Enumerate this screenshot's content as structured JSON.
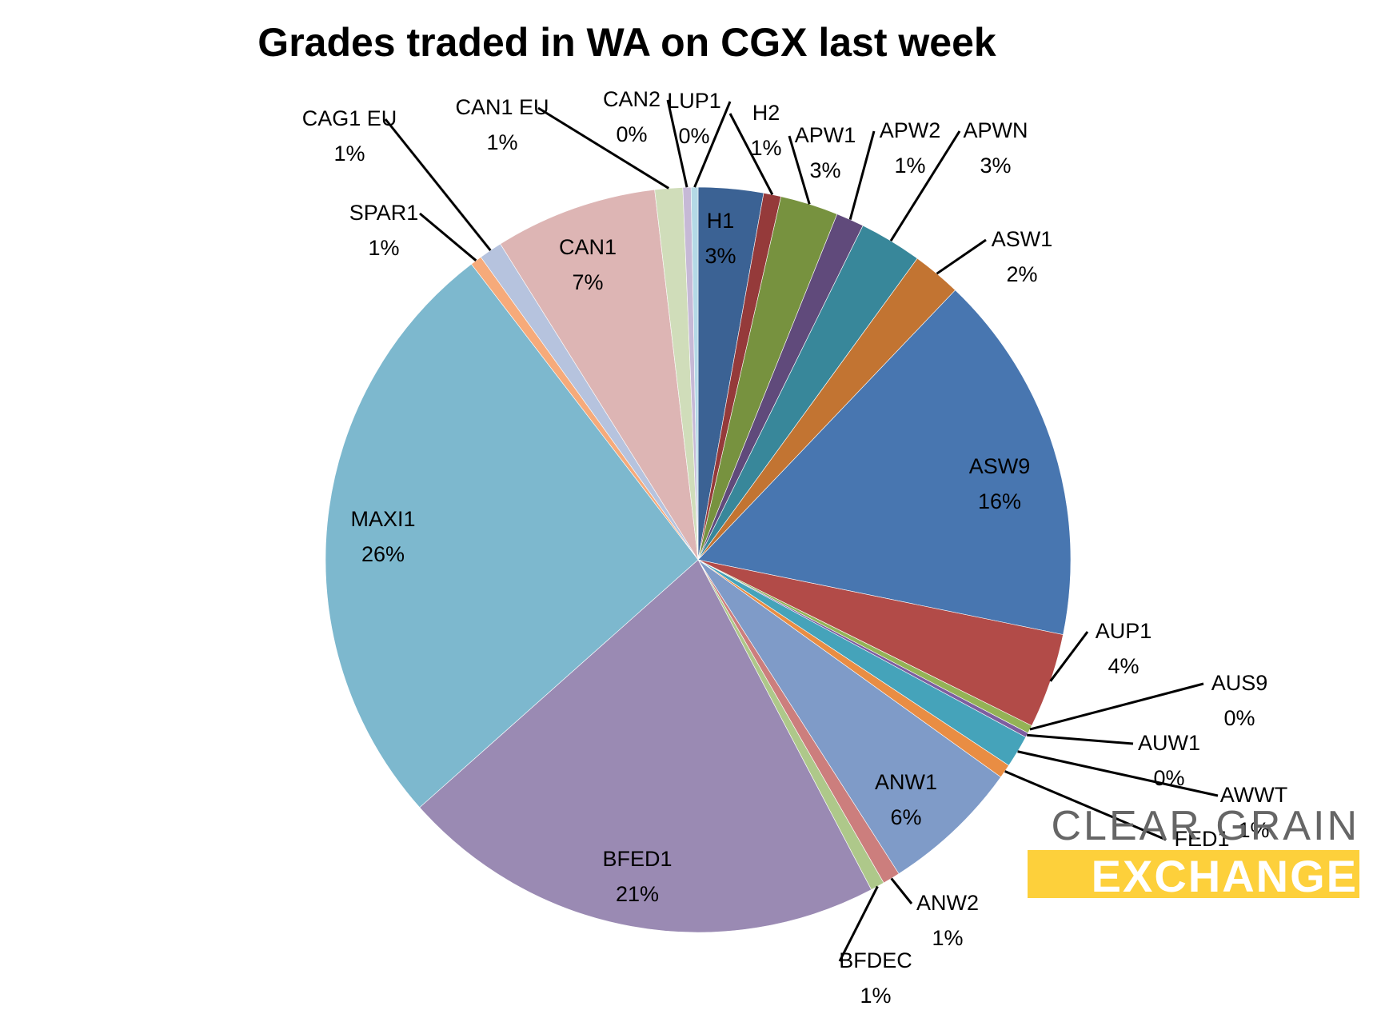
{
  "chart_data": {
    "type": "pie",
    "title": "Grades traded in WA on CGX last week",
    "start_angle_deg": 0,
    "direction": "clockwise",
    "slices": [
      {
        "label": "H1",
        "pct_label": "3%",
        "value": 2.8,
        "color": "#3B6294",
        "label_pos": "inside"
      },
      {
        "label": "H2",
        "pct_label": "1%",
        "value": 0.75,
        "color": "#953A3A",
        "label_pos": "outside"
      },
      {
        "label": "APW1",
        "pct_label": "3%",
        "value": 2.5,
        "color": "#77923F",
        "label_pos": "outside"
      },
      {
        "label": "APW2",
        "pct_label": "1%",
        "value": 1.2,
        "color": "#604A7B",
        "label_pos": "outside"
      },
      {
        "label": "APWN",
        "pct_label": "3%",
        "value": 2.7,
        "color": "#38879A",
        "label_pos": "outside"
      },
      {
        "label": "ASW1",
        "pct_label": "2%",
        "value": 2.1,
        "color": "#C27432",
        "label_pos": "outside"
      },
      {
        "label": "ASW9",
        "pct_label": "16%",
        "value": 16.0,
        "color": "#4876B0",
        "label_pos": "inside"
      },
      {
        "label": "AUP1",
        "pct_label": "4%",
        "value": 4.1,
        "color": "#B24B48",
        "label_pos": "outside"
      },
      {
        "label": "AUS9",
        "pct_label": "0%",
        "value": 0.35,
        "color": "#94B356",
        "label_pos": "outside"
      },
      {
        "label": "AUW1",
        "pct_label": "0%",
        "value": 0.2,
        "color": "#7D5EA0",
        "label_pos": "outside"
      },
      {
        "label": "AWWT",
        "pct_label": "1%",
        "value": 1.4,
        "color": "#45A3BA",
        "label_pos": "outside"
      },
      {
        "label": "FED1",
        "pct_label": "1%",
        "value": 0.6,
        "color": "#E98D43",
        "label_pos": "outside"
      },
      {
        "label": "ANW1",
        "pct_label": "6%",
        "value": 6.0,
        "color": "#7F9BC8",
        "label_pos": "inside"
      },
      {
        "label": "ANW2",
        "pct_label": "1%",
        "value": 0.75,
        "color": "#CC7E7D",
        "label_pos": "outside"
      },
      {
        "label": "BFDEC",
        "pct_label": "1%",
        "value": 0.6,
        "color": "#AEC88A",
        "label_pos": "outside"
      },
      {
        "label": "BFED1",
        "pct_label": "21%",
        "value": 21.0,
        "color": "#9A8AB3",
        "label_pos": "inside"
      },
      {
        "label": "MAXI1",
        "pct_label": "26%",
        "value": 26.0,
        "color": "#7DB8CE",
        "label_pos": "inside"
      },
      {
        "label": "SPAR1",
        "pct_label": "1%",
        "value": 0.5,
        "color": "#F6AA7A",
        "label_pos": "outside"
      },
      {
        "label": "CAG1 EU",
        "pct_label": "1%",
        "value": 1.0,
        "color": "#B6C3DE",
        "label_pos": "outside"
      },
      {
        "label": "CAN1",
        "pct_label": "7%",
        "value": 7.0,
        "color": "#DDB5B4",
        "label_pos": "inside"
      },
      {
        "label": "CAN1 EU",
        "pct_label": "1%",
        "value": 1.2,
        "color": "#D0DDBA",
        "label_pos": "outside"
      },
      {
        "label": "CAN2",
        "pct_label": "0%",
        "value": 0.35,
        "color": "#C6B9D6",
        "label_pos": "outside"
      },
      {
        "label": "LUP1",
        "pct_label": "0%",
        "value": 0.3,
        "color": "#B4D9E6",
        "label_pos": "outside"
      }
    ],
    "legend": "none (data labels with leader lines)"
  },
  "logo": {
    "line1": "CLEAR GRAIN",
    "line2": "EXCHANGE",
    "line1_color": "#666666",
    "line2_bg": "#FDD03B",
    "line2_color": "#ffffff"
  }
}
